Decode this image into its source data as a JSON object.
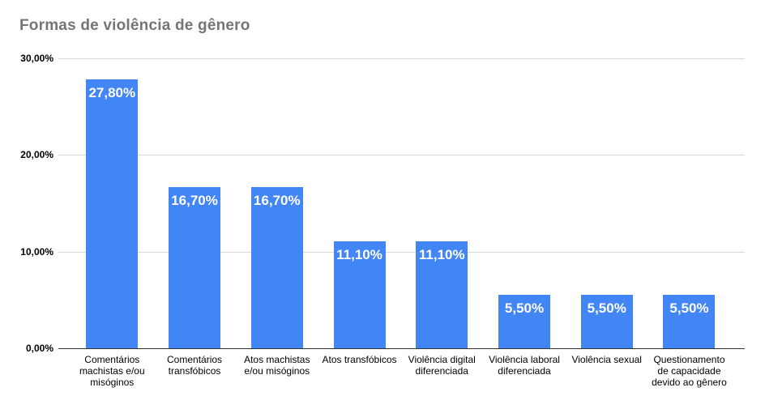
{
  "title": "Formas de violência de gênero",
  "colors": {
    "bar": "#4285f4",
    "title_text": "#757575",
    "gridline": "#dadada",
    "axis_line": "#333333",
    "value_label": "#ffffff",
    "tick_label": "#000000"
  },
  "y_axis": {
    "tick_labels": [
      "30,00%",
      "20,00%",
      "10,00%",
      "0,00%"
    ],
    "tick_values": [
      30,
      20,
      10,
      0
    ]
  },
  "chart_data": {
    "type": "bar",
    "title": "Formas de violência de gênero",
    "categories": [
      "Comentários machistas e/ou misóginos",
      "Comentários transfóbicos",
      "Atos machistas e/ou misóginos",
      "Atos transfóbicos",
      "Violência digital diferenciada",
      "Violência laboral diferenciada",
      "Violência sexual",
      "Questionamento de capacidade devido ao gênero"
    ],
    "values": [
      27.8,
      16.7,
      16.7,
      11.1,
      11.1,
      5.5,
      5.5,
      5.5
    ],
    "value_labels": [
      "27,80%",
      "16,70%",
      "16,70%",
      "11,10%",
      "11,10%",
      "5,50%",
      "5,50%",
      "5,50%"
    ],
    "xlabel": "",
    "ylabel": "",
    "ylim": [
      0,
      30
    ],
    "grid": true,
    "legend_position": "none",
    "bar_color": "#4285f4"
  }
}
